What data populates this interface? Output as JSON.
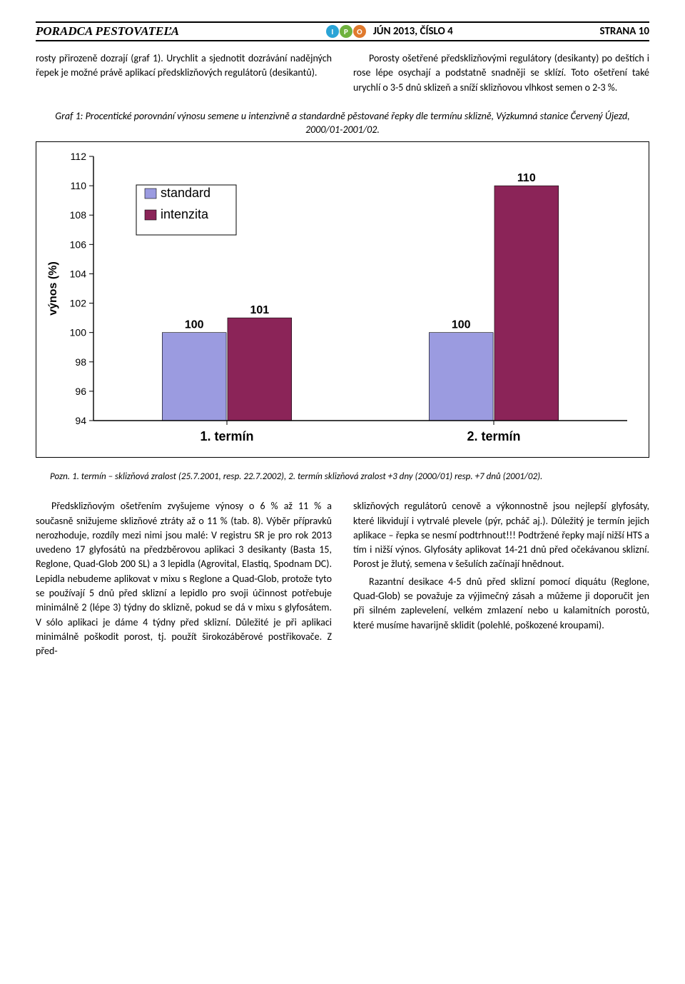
{
  "header": {
    "brand": "PORADCA PESTOVATEĽA",
    "ipo_letters": [
      "I",
      "P",
      "O"
    ],
    "ipo_colors": [
      "#2aa4d6",
      "#6fb23e",
      "#e07a2e"
    ],
    "issue": "JÚN 2013, ČÍSLO 4",
    "page": "STRANA 10"
  },
  "top_paragraphs": {
    "left": "rosty přirozeně dozrají (graf 1). Urychlit a sjednotit dozrávání nadějných řepek je možné právě aplikací předsklizňových regulátorů (desikantů).",
    "right": "Porosty ošetřené předsklizňovými regulátory (desikanty) po deštích i rose lépe osychají a podstatně snadněji se sklízí. Toto ošetření také urychlí o 3-5 dnů sklizeň a sníží sklizňovou vlhkost semen o 2-3 %."
  },
  "chart_caption": "Graf 1: Procentické porovnání výnosu semene u intenzivně a standardně pěstované řepky dle termínu sklizně, Výzkumná stanice Červený Újezd, 2000/01-2001/02.",
  "chart": {
    "type": "bar",
    "y_label": "výnos (%)",
    "y_min": 94,
    "y_max": 112,
    "y_ticks": [
      94,
      96,
      98,
      100,
      102,
      104,
      106,
      108,
      110,
      112
    ],
    "categories": [
      "1. termín",
      "2. termín"
    ],
    "series": [
      {
        "name": "standard",
        "color": "#9b9be0",
        "values": [
          100,
          100
        ]
      },
      {
        "name": "intenzita",
        "color": "#8b2458",
        "values": [
          101,
          110
        ]
      }
    ],
    "bar_labels": [
      [
        "100",
        "101"
      ],
      [
        "100",
        "110"
      ]
    ],
    "legend_box_border": "#000000",
    "axis_color": "#000000",
    "label_fontsize": 16,
    "tick_fontsize": 14,
    "category_fontsize": 18,
    "category_fontweight": "bold",
    "bar_value_fontsize": 16,
    "bar_value_fontweight": "bold",
    "bar_width_ratio": 0.24,
    "bar_gap_ratio": 0.005,
    "group_gap_ratio": 0.03,
    "plot_bg": "#ffffff",
    "legend_font": "Arial",
    "legend_fontsize": 18
  },
  "footnote": "Pozn. 1. termín – sklizňová zralost (25.7.2001, resp. 22.7.2002), 2. termín sklizňová zralost +3 dny (2000/01) resp. +7 dnů (2001/02).",
  "bottom_paragraphs": {
    "left": "Předsklizňovým ošetřením zvyšujeme výnosy o 6 % až 11 % a současně snižujeme sklizňové ztráty až o 11 % (tab. 8). Výběr přípravků nerozhoduje, rozdíly mezi nimi jsou malé: V registru SR je pro rok 2013 uvedeno 17 glyfosátů na předzběrovou aplikaci 3 desikanty (Basta 15, Reglone, Quad-Glob 200 SL) a 3 lepidla (Agrovital, Elastiq, Spodnam DC). Lepidla nebudeme aplikovat v mixu s Reglone a Quad-Glob, protože tyto se používají 5 dnů před sklizní a lepidlo pro svoji účinnost potřebuje minimálně 2 (lépe 3) týdny do sklizně, pokud se dá v mixu s glyfosátem. V sólo aplikaci je dáme 4 týdny před sklizní. Důležité je při aplikaci minimálně poškodit porost, tj. použít širokozáběrové postřikovače. Z před-",
    "right_1": "sklizňových regulátorů cenově a výkonnostně jsou nejlepší glyfosáty, které likvidují i vytrvalé plevele (pýr, pcháč aj.). Důležitý je termín jejich aplikace – řepka se nesmí podtrhnout!!! Podtržené řepky mají nižší HTS a tím i nižší výnos. Glyfosáty aplikovat 14-21 dnů před očekávanou sklizní. Porost je žlutý, semena v šešulích začínají hnědnout.",
    "right_2": "Razantní desikace 4-5 dnů před sklizní pomocí diquátu (Reglone, Quad-Glob) se považuje za výjimečný zásah a můžeme ji doporučit jen při silném zaplevelení, velkém zmlazení nebo u kalamitních porostů, které musíme havarijně sklidit (polehlé, poškozené kroupami)."
  }
}
